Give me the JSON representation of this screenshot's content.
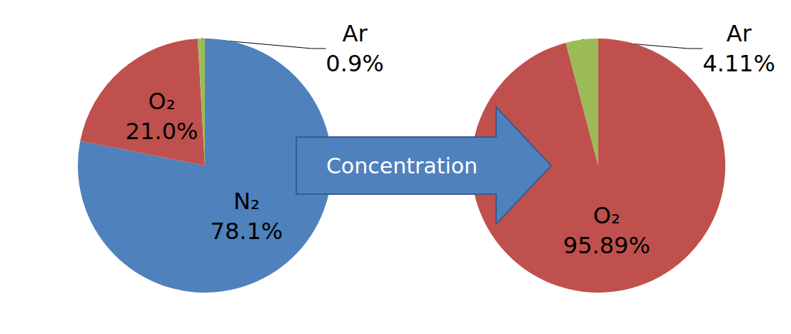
{
  "chart_data": [
    {
      "type": "pie",
      "categories": [
        "N₂",
        "O₂",
        "Ar"
      ],
      "values": [
        78.1,
        21.0,
        0.9
      ],
      "value_labels": [
        "78.1%",
        "21.0%",
        "0.9%"
      ],
      "colors": [
        "#4f81bd",
        "#c0504d",
        "#9bbb59"
      ],
      "data_labels": true
    },
    {
      "type": "pie",
      "categories": [
        "O₂",
        "Ar"
      ],
      "values": [
        95.89,
        4.11
      ],
      "value_labels": [
        "95.89%",
        "4.11%"
      ],
      "colors": [
        "#c0504d",
        "#9bbb59"
      ],
      "data_labels": true
    }
  ],
  "annotation": "Concentration"
}
